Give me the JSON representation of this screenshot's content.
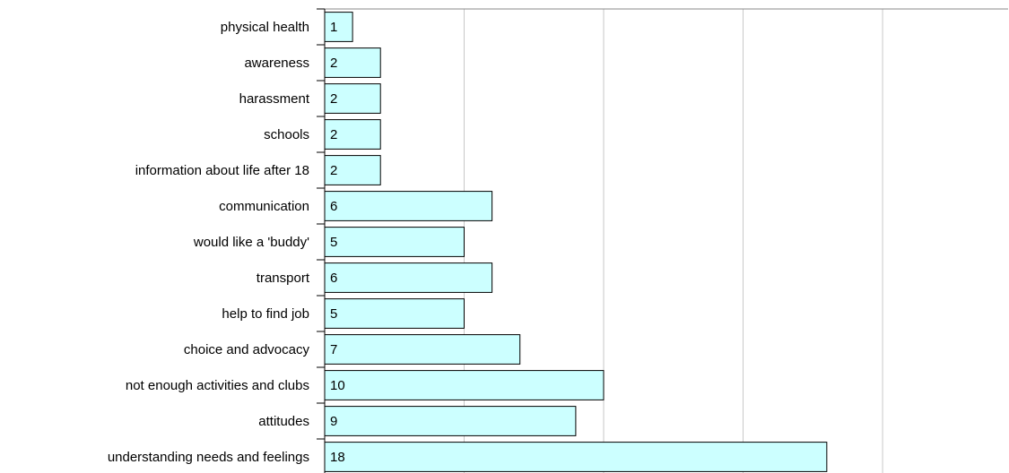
{
  "chart_data": {
    "type": "bar",
    "orientation": "horizontal",
    "categories": [
      "physical health",
      "awareness",
      "harassment",
      "schools",
      "information about life after 18",
      "communication",
      "would like a 'buddy'",
      "transport",
      "help to find job",
      "choice and advocacy",
      "not enough activities and clubs",
      "attitudes",
      "understanding needs and feelings"
    ],
    "values": [
      1,
      2,
      2,
      2,
      2,
      6,
      5,
      6,
      5,
      7,
      10,
      9,
      18
    ],
    "color": "#ccffff",
    "xlim": [
      0,
      24.5
    ],
    "xticks": [
      0,
      5,
      10,
      15,
      20
    ],
    "grid": true
  }
}
